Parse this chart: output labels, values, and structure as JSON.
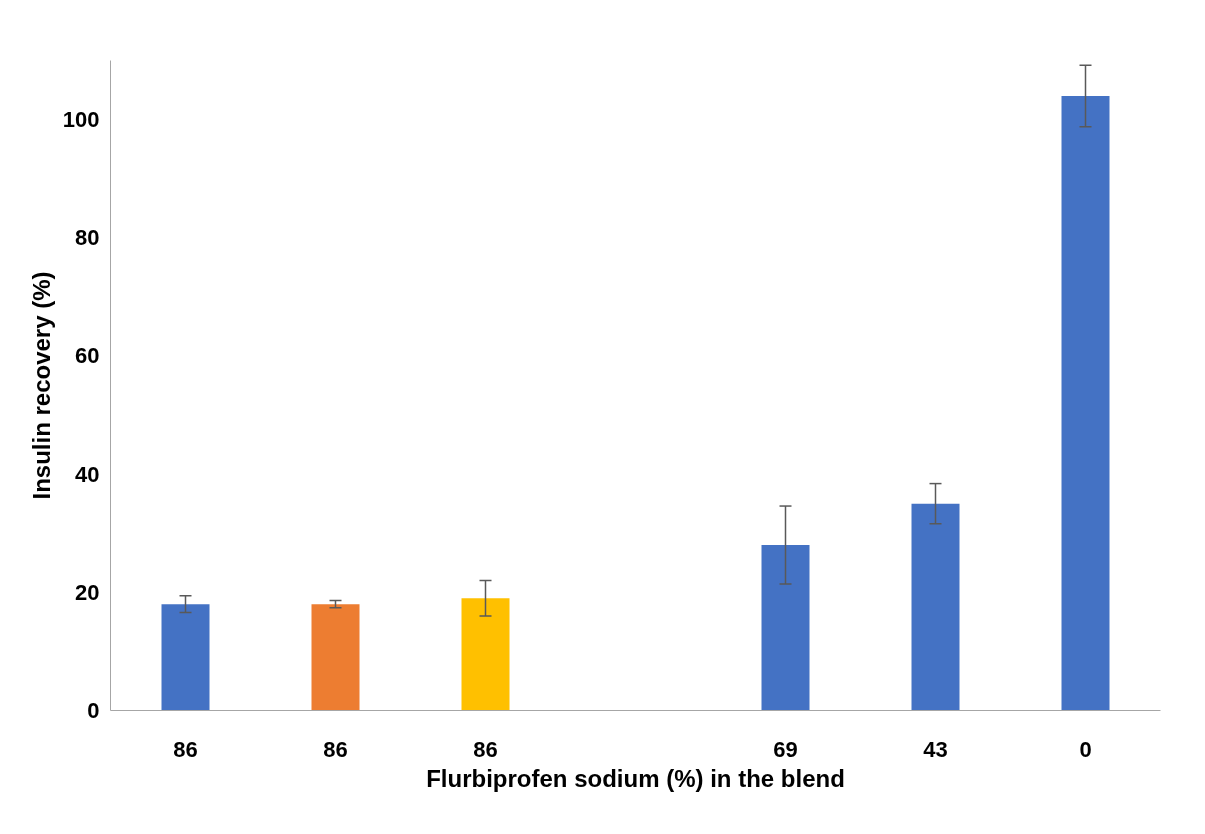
{
  "chart_data": {
    "type": "bar",
    "xlabel": "Flurbiprofen sodium (%) in the blend",
    "ylabel": "Insulin recovery (%)",
    "categories": [
      "86",
      "86",
      "86",
      null,
      "69",
      "43",
      "0"
    ],
    "values": [
      18,
      18,
      19,
      null,
      28,
      35,
      104
    ],
    "colors": [
      "#4472c4",
      "#ed7d31",
      "#ffc000",
      "#4472c4",
      "#4472c4",
      "#4472c4",
      "#4472c4"
    ],
    "errors": [
      1.4,
      0.6,
      3,
      null,
      6.6,
      3.4,
      5.2
    ],
    "ylim": [
      0,
      110
    ],
    "yticks": [
      0,
      20,
      40,
      60,
      80,
      100
    ],
    "grid": false
  }
}
